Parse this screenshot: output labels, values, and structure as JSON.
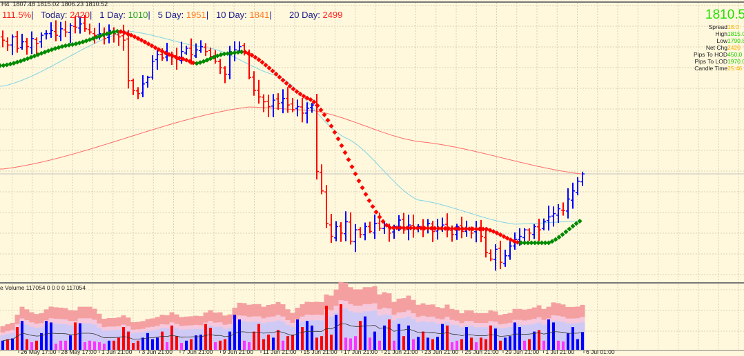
{
  "header": {
    "symbol_tf": "H4",
    "ohlc": "1807.48 1815.02 1806.23 1810.52"
  },
  "stats": {
    "pct": "111.5%",
    "today_label": "Today:",
    "today": "2420",
    "d1_label": "1 Day:",
    "d1": "1010",
    "d5_label": "5 Day:",
    "d5": "1951",
    "d10_label": "10 Day:",
    "d10": "1841",
    "d20_label": "20 Day:",
    "d20": "2499",
    "sep": "|"
  },
  "info_panel": {
    "price": "1810.52",
    "rows": [
      {
        "label": "Spread",
        "value": "18.0",
        "color": "#ffb400"
      },
      {
        "label": "High",
        "value": "1815.02",
        "color": "#22d000"
      },
      {
        "label": "Low",
        "value": "1790.82",
        "color": "#22d000"
      },
      {
        "label": "Net Chg",
        "value": "2420",
        "color": "#ffb400"
      },
      {
        "label": "Pips To HOD",
        "value": "450.0",
        "color": "#22d000"
      },
      {
        "label": "Pips To LOD",
        "value": "1970.0",
        "color": "#22d000"
      },
      {
        "label": "Candle Time",
        "value": "25:46",
        "color": "#ffb400"
      }
    ]
  },
  "volume_label": "e Volume 117054 0 0 0 0 117054",
  "time_axis": [
    "26 May 17:00",
    "28 May 17:00",
    "1 Jun 21:00",
    "3 Jun 21:00",
    "7 Jun 21:00",
    "9 Jun 21:00",
    "11 Jun 21:00",
    "15 Jun 21:00",
    "17 Jun 21:00",
    "21 Jun 21:00",
    "23 Jun 21:00",
    "25 Jun 21:00",
    "29 Jun 21:00",
    "1 Jul 21:00",
    "6 Jul 01:00"
  ],
  "colors": {
    "background": "#fff8dc",
    "up_bar": "#0000ff",
    "down_bar": "#ff0000",
    "ma_slow": "#ff6a6a",
    "ma_fast": "#7fd3e6",
    "trend_up": "#008a00",
    "trend_down": "#ff0000",
    "low_volume": "#ff33ff"
  },
  "chart_data": {
    "type": "ohlc",
    "timeframe": "H4",
    "last_close": 1810.52,
    "closes": [
      1893,
      1890,
      1895,
      1888,
      1892,
      1889,
      1894,
      1891,
      1896,
      1897,
      1899,
      1896,
      1900,
      1898,
      1902,
      1901,
      1903,
      1900,
      1898,
      1896,
      1897,
      1894,
      1899,
      1897,
      1895,
      1893,
      1868,
      1862,
      1860,
      1866,
      1870,
      1880,
      1884,
      1882,
      1885,
      1883,
      1881,
      1886,
      1888,
      1884,
      1887,
      1889,
      1886,
      1883,
      1880,
      1876,
      1872,
      1884,
      1887,
      1889,
      1885,
      1870,
      1862,
      1858,
      1855,
      1852,
      1856,
      1854,
      1857,
      1853,
      1850,
      1852,
      1848,
      1851,
      1853,
      1812,
      1800,
      1780,
      1772,
      1778,
      1774,
      1781,
      1769,
      1776,
      1773,
      1778,
      1775,
      1780,
      1777,
      1779,
      1774,
      1778,
      1782,
      1776,
      1779,
      1777,
      1778,
      1776,
      1780,
      1775,
      1777,
      1779,
      1776,
      1773,
      1778,
      1775,
      1777,
      1774,
      1776,
      1772,
      1762,
      1758,
      1764,
      1756,
      1760,
      1766,
      1770,
      1772,
      1776,
      1774,
      1778,
      1776,
      1781,
      1784,
      1786,
      1789,
      1788,
      1795,
      1800,
      1806,
      1810.52
    ],
    "ma_slow": [
      [
        0,
        1813.5
      ],
      [
        51,
        1851.8
      ],
      [
        64,
        1849.7
      ],
      [
        86,
        1830.5
      ],
      [
        121,
        1810.1
      ]
    ],
    "ma_fast": [
      [
        0,
        1864.6
      ],
      [
        26,
        1898.6
      ],
      [
        43,
        1888
      ],
      [
        57,
        1871
      ],
      [
        71,
        1832.7
      ],
      [
        86,
        1794.4
      ],
      [
        106,
        1779.5
      ],
      [
        121,
        1781.6
      ]
    ],
    "trend_line": [
      [
        0,
        1877.3
      ],
      [
        14,
        1890.1
      ],
      [
        24,
        1898.6
      ],
      [
        37,
        1881.6
      ],
      [
        40,
        1878.6
      ],
      [
        46,
        1884.6
      ],
      [
        50,
        1885.9
      ],
      [
        64,
        1856
      ],
      [
        80,
        1777.3
      ],
      [
        100,
        1776.5
      ],
      [
        107,
        1768
      ],
      [
        113,
        1768
      ],
      [
        121,
        1783.7
      ]
    ],
    "volume_thousands": [
      60,
      70,
      75,
      150,
      190,
      70,
      50,
      60,
      110,
      190,
      180,
      40,
      60,
      60,
      95,
      180,
      175,
      50,
      60,
      55,
      50,
      40,
      60,
      60,
      80,
      150,
      120,
      45,
      60,
      80,
      110,
      70,
      80,
      120,
      50,
      160,
      90,
      45,
      60,
      70,
      95,
      100,
      170,
      145,
      50,
      60,
      70,
      120,
      230,
      200,
      60,
      50,
      120,
      170,
      70,
      100,
      80,
      130,
      60,
      90,
      100,
      200,
      150,
      190,
      160,
      80,
      90,
      290,
      100,
      230,
      300,
      80,
      75,
      90,
      190,
      220,
      80,
      120,
      60,
      160,
      200,
      60,
      170,
      90,
      160,
      70,
      85,
      120,
      80,
      70,
      85,
      170,
      160,
      50,
      60,
      70,
      150,
      80,
      50,
      80,
      70,
      160,
      140,
      60,
      80,
      90,
      180,
      150,
      60,
      70,
      120,
      130,
      60,
      200,
      180,
      60,
      55,
      110,
      150,
      70,
      117
    ]
  }
}
